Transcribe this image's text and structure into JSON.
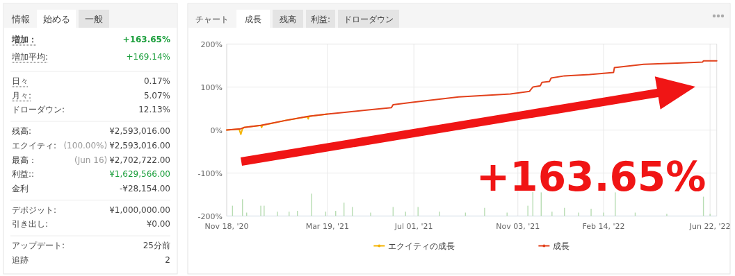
{
  "chart_data": [
    {
      "type": "other",
      "annotations": [
        "情報",
        "始める",
        "一般",
        "増加：",
        "+163.65%",
        "増加平均:",
        "+169.14%",
        "日々",
        "0.17%",
        "月々:",
        "5.07%",
        "ドローダウン:",
        "12.13%",
        "残高:",
        "¥2,593,016.00",
        "エクイティ:",
        "(100.00%)",
        "¥2,593,016.00",
        "最高：",
        "(Jun 16)",
        "¥2,702,722.00",
        "利益::",
        "¥1,629,566.00",
        "金利",
        "-¥28,154.00",
        "デポジット:",
        "¥1,000,000.00",
        "引き出し:",
        "¥0.00",
        "アップデート:",
        "25分前",
        "追跡",
        "2"
      ]
    },
    {
      "type": "line",
      "annotations": [
        "チャート",
        "成長",
        "残高",
        "利益:",
        "ドローダウン",
        "+163.65%"
      ],
      "xlim": [
        "2020-11-18",
        "2022-06-30"
      ],
      "xticks": [
        {
          "value": "2020-11-18",
          "label": "Nov 18, '20"
        },
        {
          "value": "2021-03-19",
          "label": "Mar 19, '21"
        },
        {
          "value": "2021-07-01",
          "label": "Jul 01, '21"
        },
        {
          "value": "2021-11-03",
          "label": "Nov 03, '21"
        },
        {
          "value": "2022-02-14",
          "label": "Feb 14, '22"
        },
        {
          "value": "2022-06-22",
          "label": "Jun 22, '22"
        }
      ],
      "ylim": [
        -200,
        200
      ],
      "yticks": [
        {
          "value": -200,
          "label": "-200%"
        },
        {
          "value": -100,
          "label": "-100%"
        },
        {
          "value": 0,
          "label": "0%"
        },
        {
          "value": 100,
          "label": "100%"
        },
        {
          "value": 200,
          "label": "200%"
        }
      ],
      "grid": true,
      "legend": "bottom",
      "series": [
        {
          "name": "エクイティの成長",
          "type": "line",
          "color": "#f5b400",
          "x": [
            "2020-11-18",
            "2020-12-03",
            "2020-12-05",
            "2020-12-07",
            "2020-12-09",
            "2020-12-29",
            "2020-12-30",
            "2020-12-31",
            "2021-01-27",
            "2021-02-23",
            "2021-02-24",
            "2021-02-25",
            "2021-03-19"
          ],
          "values": [
            0,
            2,
            -10,
            3,
            6,
            11,
            6,
            11,
            22,
            31,
            26,
            32,
            37
          ]
        },
        {
          "name": "成長",
          "type": "line",
          "color": "#e2411c",
          "x": [
            "2020-11-18",
            "2020-12-05",
            "2020-12-09",
            "2020-12-29",
            "2021-01-27",
            "2021-02-24",
            "2021-03-19",
            "2021-04-13",
            "2021-05-03",
            "2021-06-04",
            "2021-06-06",
            "2021-07-01",
            "2021-08-24",
            "2021-10-25",
            "2021-11-17",
            "2021-11-21",
            "2021-11-30",
            "2021-12-02",
            "2021-12-11",
            "2021-12-13",
            "2021-12-29",
            "2022-01-28",
            "2022-02-26",
            "2022-02-27",
            "2022-04-03",
            "2022-05-19",
            "2022-06-13",
            "2022-06-14",
            "2022-06-30"
          ],
          "values": [
            0,
            3,
            6,
            11,
            22,
            32,
            37,
            42,
            46,
            52,
            59,
            65,
            77,
            84,
            90,
            100,
            103,
            111,
            113,
            121,
            126,
            129,
            134,
            145,
            153,
            156,
            158,
            161,
            161
          ]
        },
        {
          "type": "bar",
          "color": "#b7dcb2",
          "x": [
            "2020-11-25",
            "2020-12-07",
            "2020-12-12",
            "2020-12-29",
            "2021-01-02",
            "2021-01-18",
            "2021-02-01",
            "2021-02-11",
            "2021-02-28",
            "2021-03-17",
            "2021-03-29",
            "2021-04-08",
            "2021-04-18",
            "2021-05-10",
            "2021-06-06",
            "2021-06-21",
            "2021-07-06",
            "2021-08-01",
            "2021-09-01",
            "2021-09-24",
            "2021-10-21",
            "2021-11-15",
            "2021-11-21",
            "2021-12-01",
            "2021-12-14",
            "2021-12-29",
            "2022-01-15",
            "2022-01-30",
            "2022-02-14",
            "2022-02-28",
            "2022-03-24",
            "2022-05-01",
            "2022-06-14",
            "2022-06-22"
          ],
          "base": [
            -200,
            -200,
            -200,
            -200,
            -200,
            -200,
            -200,
            -200,
            -200,
            -200,
            -200,
            -200,
            -200,
            -200,
            -200,
            -200,
            -200,
            -200,
            -200,
            -200,
            -200,
            -200,
            -200,
            -200,
            -200,
            -200,
            -200,
            -200,
            -200,
            -200,
            -200,
            -200,
            -200,
            -200
          ],
          "values": [
            24,
            39,
            8,
            24,
            24,
            10,
            10,
            12,
            52,
            10,
            12,
            31,
            21,
            8,
            21,
            10,
            21,
            10,
            8,
            19,
            8,
            24,
            56,
            55,
            10,
            19,
            8,
            17,
            8,
            55,
            8,
            5,
            45,
            5
          ]
        }
      ]
    }
  ]
}
